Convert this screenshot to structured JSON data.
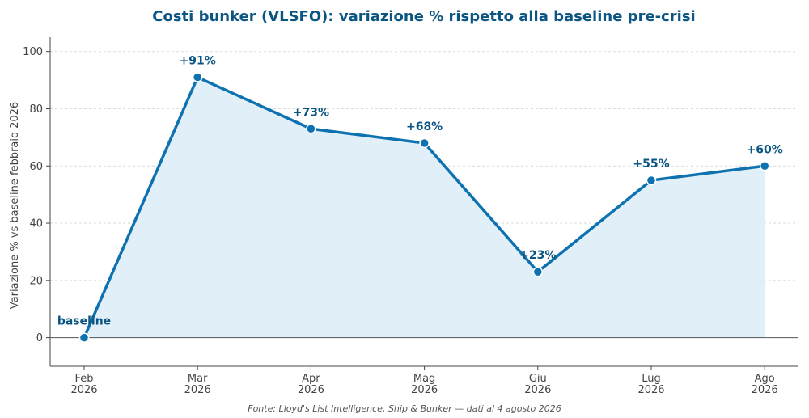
{
  "chart_data": {
    "type": "area",
    "title": "Costi bunker (VLSFO): variazione % rispetto alla baseline pre-crisi",
    "ylabel": "Variazione % vs baseline febbraio 2026",
    "xlabel": "",
    "categories": [
      [
        "Feb",
        "2026"
      ],
      [
        "Mar",
        "2026"
      ],
      [
        "Apr",
        "2026"
      ],
      [
        "Mag",
        "2026"
      ],
      [
        "Giu",
        "2026"
      ],
      [
        "Lug",
        "2026"
      ],
      [
        "Ago",
        "2026"
      ]
    ],
    "values": [
      0,
      91,
      73,
      68,
      23,
      55,
      60
    ],
    "data_labels": [
      "baseline",
      "+91%",
      "+73%",
      "+68%",
      "+23%",
      "+55%",
      "+60%"
    ],
    "ylim": [
      -10,
      105
    ],
    "yticks": [
      0,
      20,
      40,
      60,
      80,
      100
    ],
    "grid": true,
    "colors": {
      "line": "#0e72b0",
      "fill": "#e1eff8",
      "label": "#0b5583"
    },
    "source": "Fonte: Lloyd's List Intelligence, Ship & Bunker — dati al 4 agosto 2026"
  }
}
